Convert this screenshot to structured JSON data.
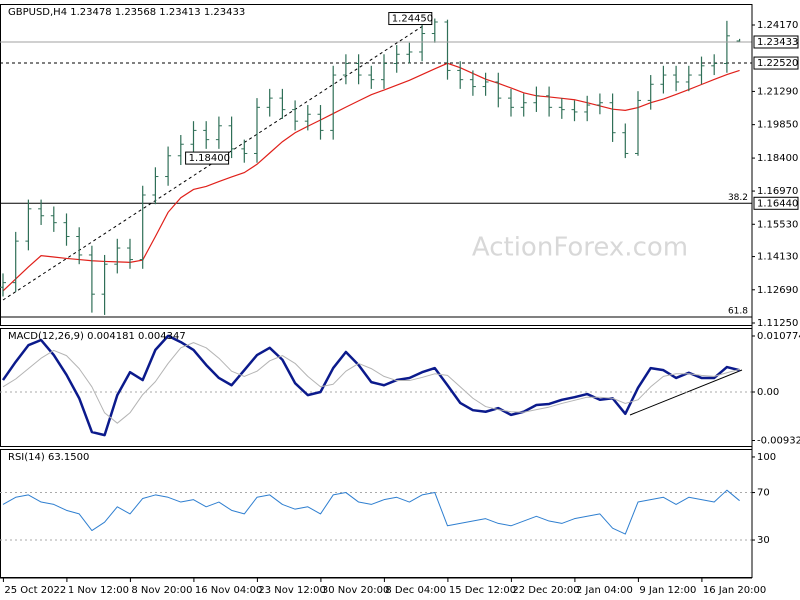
{
  "chart_data": [
    {
      "type": "ohlc",
      "title": "GBPUSD,H4  1.23478 1.23568 1.23413 1.23433",
      "watermark": "ActionForex.com",
      "color": "#2f6f57",
      "categories": [
        null,
        null,
        "25 Oct 2022",
        null,
        null,
        null,
        null,
        "1 Nov 12:00",
        null,
        null,
        null,
        null,
        "8 Nov 20:00",
        null,
        null,
        null,
        null,
        "16 Nov 04:00",
        null,
        null,
        null,
        null,
        "23 Nov 12:00",
        null,
        null,
        null,
        null,
        "30 Nov 20:00",
        null,
        null,
        null,
        null,
        "8 Dec 04:00",
        null,
        null,
        null,
        null,
        "15 Dec 12:00",
        null,
        null,
        null,
        null,
        "22 Dec 20:00",
        null,
        null,
        null,
        null,
        "2 Jan 04:00",
        null,
        null,
        null,
        null,
        "9 Jan 12:00",
        null,
        null,
        null,
        null,
        "16 Jan 20:00",
        null
      ],
      "open": [
        1.128,
        1.13,
        1.148,
        1.162,
        1.159,
        1.156,
        1.15,
        1.142,
        1.125,
        1.138,
        1.145,
        1.14,
        1.168,
        1.176,
        1.185,
        1.19,
        1.196,
        1.192,
        1.198,
        1.188,
        1.186,
        1.206,
        1.21,
        1.205,
        1.2,
        1.203,
        1.196,
        1.22,
        1.225,
        1.22,
        1.218,
        1.225,
        1.229,
        1.23,
        1.238,
        1.243,
        1.222,
        1.218,
        1.215,
        1.217,
        1.21,
        1.206,
        1.208,
        1.211,
        1.206,
        1.205,
        1.204,
        1.207,
        1.208,
        1.195,
        1.186,
        1.209,
        1.216,
        1.22,
        1.217,
        1.22,
        1.224,
        1.225,
        1.23478
      ],
      "high": [
        1.134,
        1.152,
        1.166,
        1.166,
        1.163,
        1.16,
        1.154,
        1.146,
        1.142,
        1.149,
        1.149,
        1.172,
        1.18,
        1.189,
        1.194,
        1.2,
        1.2,
        1.202,
        1.202,
        1.192,
        1.21,
        1.214,
        1.214,
        1.209,
        1.207,
        1.207,
        1.224,
        1.229,
        1.229,
        1.224,
        1.229,
        1.233,
        1.234,
        1.242,
        1.2445,
        1.244,
        1.226,
        1.222,
        1.221,
        1.221,
        1.214,
        1.212,
        1.215,
        1.215,
        1.21,
        1.209,
        1.211,
        1.212,
        1.212,
        1.199,
        1.213,
        1.22,
        1.224,
        1.224,
        1.224,
        1.228,
        1.229,
        1.2435,
        1.23568
      ],
      "low": [
        1.124,
        1.126,
        1.144,
        1.155,
        1.152,
        1.146,
        1.138,
        1.117,
        1.116,
        1.134,
        1.136,
        1.136,
        1.164,
        1.172,
        1.181,
        1.186,
        1.188,
        1.188,
        1.184,
        1.182,
        1.182,
        1.202,
        1.201,
        1.196,
        1.196,
        1.192,
        1.192,
        1.216,
        1.216,
        1.214,
        1.214,
        1.221,
        1.225,
        1.226,
        1.234,
        1.218,
        1.214,
        1.211,
        1.211,
        1.206,
        1.202,
        1.202,
        1.204,
        1.202,
        1.201,
        1.2,
        1.2,
        1.203,
        1.191,
        1.184,
        1.185,
        1.205,
        1.212,
        1.213,
        1.213,
        1.216,
        1.22,
        1.221,
        1.23413
      ],
      "close": [
        1.13,
        1.148,
        1.162,
        1.159,
        1.156,
        1.15,
        1.142,
        1.125,
        1.138,
        1.145,
        1.14,
        1.168,
        1.176,
        1.185,
        1.19,
        1.196,
        1.192,
        1.198,
        1.188,
        1.186,
        1.206,
        1.21,
        1.205,
        1.2,
        1.203,
        1.196,
        1.22,
        1.225,
        1.22,
        1.218,
        1.225,
        1.229,
        1.23,
        1.238,
        1.243,
        1.222,
        1.218,
        1.215,
        1.217,
        1.21,
        1.206,
        1.208,
        1.211,
        1.206,
        1.205,
        1.204,
        1.207,
        1.208,
        1.195,
        1.186,
        1.209,
        1.216,
        1.22,
        1.217,
        1.22,
        1.224,
        1.225,
        1.237,
        1.23433
      ],
      "ma": {
        "color": "#e0201a",
        "values": [
          1.1264,
          1.1316,
          1.1368,
          1.1417,
          1.1411,
          1.1405,
          1.14,
          1.1395,
          1.1392,
          1.139,
          1.1388,
          1.1398,
          1.15,
          1.1605,
          1.1668,
          1.1704,
          1.1717,
          1.1738,
          1.1758,
          1.1777,
          1.1813,
          1.1862,
          1.1911,
          1.195,
          1.1978,
          1.2005,
          1.2033,
          1.2061,
          1.2088,
          1.2115,
          1.2135,
          1.2156,
          1.2177,
          1.2202,
          1.2227,
          1.2251,
          1.2232,
          1.2207,
          1.2182,
          1.2164,
          1.2144,
          1.2123,
          1.211,
          1.2105,
          1.2099,
          1.2093,
          1.208,
          1.2066,
          1.2052,
          1.2047,
          1.2059,
          1.208,
          1.2096,
          1.2116,
          1.2137,
          1.2159,
          1.2181,
          1.2202,
          1.222
        ]
      },
      "annotations": [
        {
          "value": 1.2445,
          "label": "1.24450"
        },
        {
          "value": 1.184,
          "label": "1.18400"
        }
      ],
      "levels": [
        {
          "value": 1.2252,
          "label": "1.22520",
          "line_style": "dashed"
        },
        {
          "value": 1.1644,
          "label": "1.16440",
          "fib_label": "38.2",
          "line_style": "solid"
        },
        {
          "value": 1.1151,
          "fib_label": "61.8",
          "line_style": "solid"
        }
      ],
      "ylim": [
        1.1112,
        1.2508
      ],
      "yticks": [
        {
          "value": 1.2417,
          "label": "1.24170"
        },
        {
          "value": 1.2129,
          "label": "1.21290"
        },
        {
          "value": 1.1985,
          "label": "1.19850"
        },
        {
          "value": 1.184,
          "label": "1.18400"
        },
        {
          "value": 1.1697,
          "label": "1.16970"
        },
        {
          "value": 1.1553,
          "label": "1.15530"
        },
        {
          "value": 1.1413,
          "label": "1.14130"
        },
        {
          "value": 1.1269,
          "label": "1.12690"
        },
        {
          "value": 1.1125,
          "label": "1.11250"
        }
      ],
      "grid": false
    },
    {
      "type": "line",
      "title": "MACD(12,26,9) 0.004181 0.004347",
      "series": [
        {
          "color": "#0b1a8c",
          "width": 2.5,
          "values": [
            0.0023,
            0.0058,
            0.009,
            0.01,
            0.0071,
            0.0033,
            -0.0012,
            -0.0077,
            -0.0083,
            -0.0006,
            0.0038,
            0.0023,
            0.0081,
            0.0108,
            0.0096,
            0.0081,
            0.0052,
            0.0027,
            0.0013,
            0.0042,
            0.0071,
            0.0085,
            0.0062,
            0.0017,
            -0.0006,
            0,
            0.0046,
            0.0077,
            0.0052,
            0.0019,
            0.0013,
            0.0023,
            0.0027,
            0.0038,
            0.0046,
            0.0013,
            -0.0021,
            -0.0035,
            -0.0038,
            -0.0031,
            -0.0044,
            -0.0038,
            -0.0025,
            -0.0023,
            -0.0015,
            -0.001,
            -0.0004,
            -0.0015,
            -0.0012,
            -0.0042,
            0.0008,
            0.0046,
            0.0042,
            0.0027,
            0.0037,
            0.0027,
            0.0027,
            0.0048,
            0.004181
          ]
        },
        {
          "color": "#b4b4b4",
          "width": 1,
          "values": [
            0.001,
            0.0025,
            0.0045,
            0.0065,
            0.008,
            0.007,
            0.0045,
            0.001,
            -0.004,
            -0.006,
            -0.004,
            -0.0005,
            0.002,
            0.0055,
            0.0085,
            0.0095,
            0.0085,
            0.0065,
            0.004,
            0.003,
            0.004,
            0.006,
            0.007,
            0.0055,
            0.003,
            0.001,
            0.0015,
            0.004,
            0.0055,
            0.0045,
            0.003,
            0.0022,
            0.0022,
            0.0028,
            0.0035,
            0.0032,
            0.001,
            -0.0012,
            -0.0028,
            -0.0034,
            -0.0038,
            -0.0039,
            -0.0034,
            -0.0029,
            -0.0022,
            -0.0016,
            -0.001,
            -0.001,
            -0.0012,
            -0.0022,
            -0.0015,
            0.001,
            0.003,
            0.0035,
            0.0035,
            0.0032,
            0.003,
            0.0037,
            0.004347
          ]
        }
      ],
      "ylim": [
        -0.01058,
        0.01231
      ],
      "yticks": [
        0.010774,
        {
          "value": 0,
          "label": "0.00"
        },
        -0.009328
      ],
      "grid": true
    },
    {
      "type": "line",
      "title": "RSI(14) 63.1500",
      "series": [
        {
          "color": "#2f7fd0",
          "width": 1,
          "values": [
            60,
            66,
            68,
            62,
            60,
            55,
            52,
            38,
            45,
            58,
            52,
            65,
            68,
            66,
            62,
            64,
            58,
            62,
            55,
            52,
            66,
            68,
            60,
            56,
            58,
            52,
            68,
            70,
            62,
            60,
            64,
            66,
            62,
            68,
            70,
            42,
            44,
            46,
            48,
            44,
            42,
            46,
            50,
            46,
            44,
            48,
            50,
            52,
            40,
            35,
            62,
            64,
            66,
            60,
            66,
            64,
            62,
            72,
            63.15
          ]
        }
      ],
      "ylim": [
        -2,
        106.7
      ],
      "yticks": [
        100,
        70,
        30
      ],
      "grid": true
    }
  ]
}
